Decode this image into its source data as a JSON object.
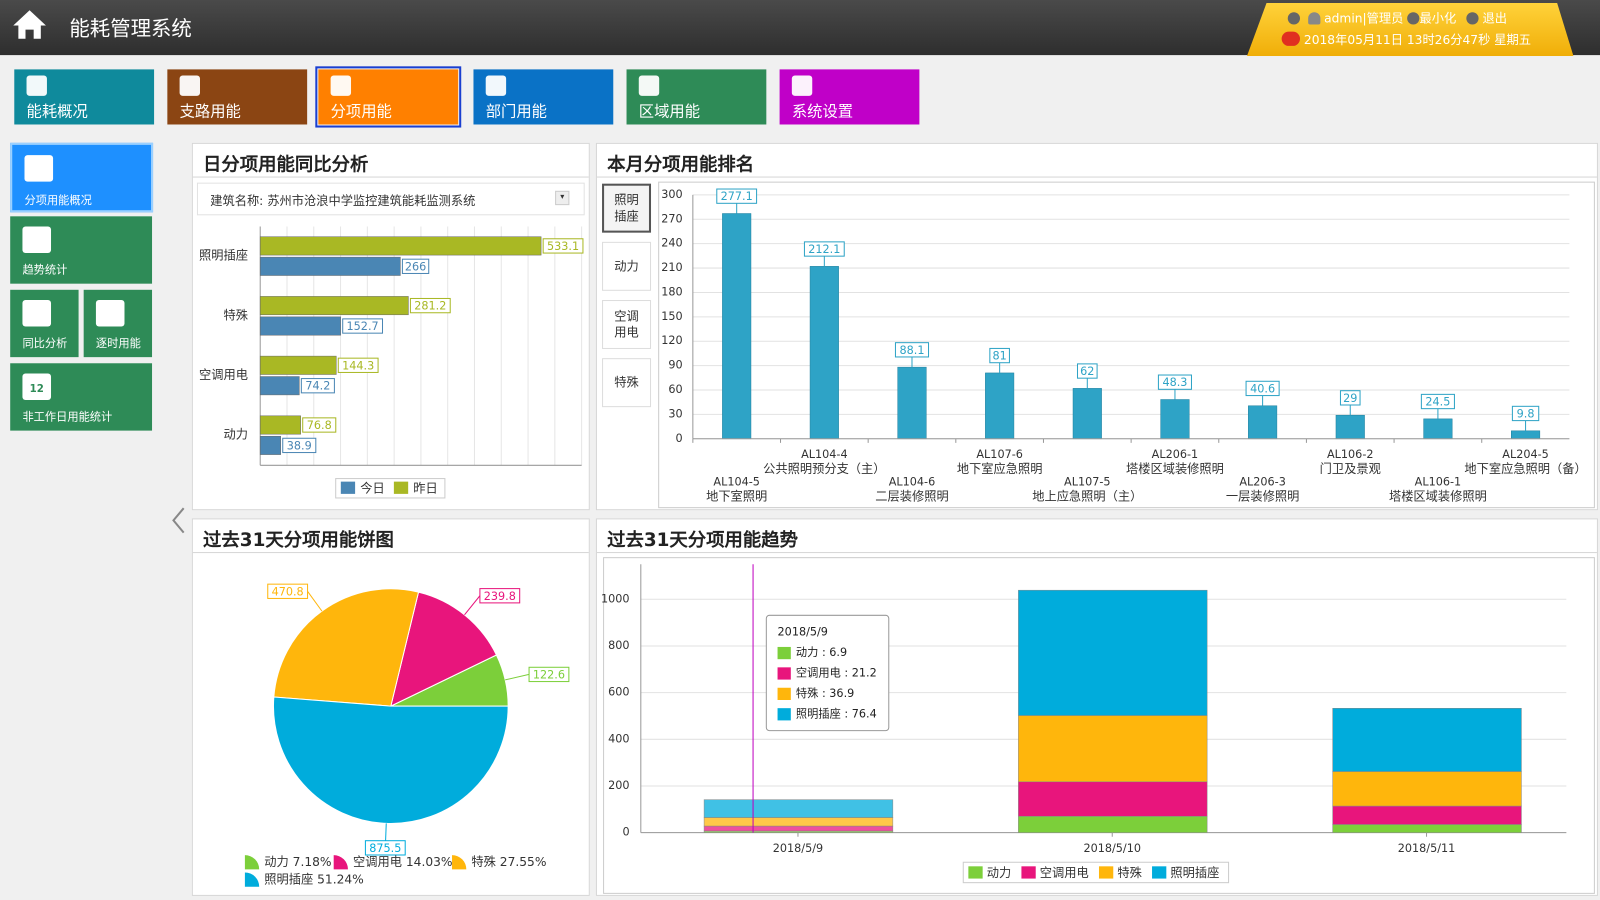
{
  "header": {
    "title": "能耗管理系统",
    "user": "admin|管理员",
    "minimize": "最小化",
    "logout": "退出",
    "datetime": "2018年05月11日 13时26分47秒 星期五"
  },
  "nav": [
    "能耗概况",
    "支路用能",
    "分项用能",
    "部门用能",
    "区域用能",
    "系统设置"
  ],
  "sidebar": [
    "分项用能概况",
    "趋势统计",
    "同比分析",
    "逐时用能",
    "非工作日用能统计"
  ],
  "calendar_day": "12",
  "chart_data": [
    {
      "type": "hbar",
      "title": "日分项用能同比分析",
      "filter_label": "建筑名称:",
      "filter_value": "苏州市沧浪中学监控建筑能耗监测系统",
      "categories": [
        "照明插座",
        "特殊",
        "空调用电",
        "动力"
      ],
      "series": [
        {
          "name": "今日",
          "color": "#4a86b4",
          "values": [
            266,
            152.7,
            74.2,
            38.9
          ]
        },
        {
          "name": "昨日",
          "color": "#a9b824",
          "values": [
            533.1,
            281.2,
            144.3,
            76.8
          ]
        }
      ],
      "xlim": [
        0,
        610
      ],
      "grid": true
    },
    {
      "type": "bar",
      "title": "本月分项用能排名",
      "tabs": [
        "照明插座",
        "动力",
        "空调用电",
        "特殊"
      ],
      "categories": [
        "AL104-5",
        "AL104-4",
        "AL104-6",
        "AL107-6",
        "AL107-5",
        "AL206-1",
        "AL206-3",
        "AL106-2",
        "AL106-1",
        "AL204-5"
      ],
      "category_names": [
        "地下室照明",
        "公共照明预分支（主）",
        "二层装修照明",
        "地下室应急照明",
        "地上应急照明（主）",
        "塔楼区域装修照明",
        "一层装修照明",
        "门卫及景观",
        "塔楼区域装修照明",
        "地下室应急照明（备）"
      ],
      "values": [
        277.1,
        212.1,
        88.1,
        81,
        62,
        48.3,
        40.6,
        29,
        24.5,
        9.8
      ],
      "color": "#2ea3c6",
      "ylim": [
        0,
        300
      ],
      "yticks": [
        0,
        30,
        60,
        90,
        120,
        150,
        180,
        210,
        240,
        270,
        300
      ],
      "grid": true
    },
    {
      "type": "pie",
      "title": "过去31天分项用能饼图",
      "categories": [
        "动力",
        "空调用电",
        "特殊",
        "照明插座"
      ],
      "values": [
        122.6,
        239.8,
        470.8,
        875.5
      ],
      "colors": [
        "#7ccf3a",
        "#e8157c",
        "#ffb60c",
        "#00acdc"
      ],
      "percent_labels": [
        "7.18%",
        "14.03%",
        "27.55%",
        "51.24%"
      ]
    },
    {
      "type": "stacked_bar",
      "title": "过去31天分项用能趋势",
      "categories": [
        "2018/5/9",
        "2018/5/10",
        "2018/5/11"
      ],
      "series": [
        {
          "name": "动力",
          "color": "#7ccf3a",
          "values": [
            6.9,
            70,
            35
          ]
        },
        {
          "name": "空调用电",
          "color": "#e8157c",
          "values": [
            21.2,
            148,
            79
          ]
        },
        {
          "name": "特殊",
          "color": "#ffb60c",
          "values": [
            36.9,
            284,
            148
          ]
        },
        {
          "name": "照明插座",
          "color": "#00acdc",
          "values": [
            76.4,
            537,
            271
          ]
        }
      ],
      "ylim": [
        0,
        1150
      ],
      "yticks": [
        0,
        200,
        400,
        600,
        800,
        1000
      ],
      "grid": true,
      "tooltip_separator": ":"
    }
  ]
}
